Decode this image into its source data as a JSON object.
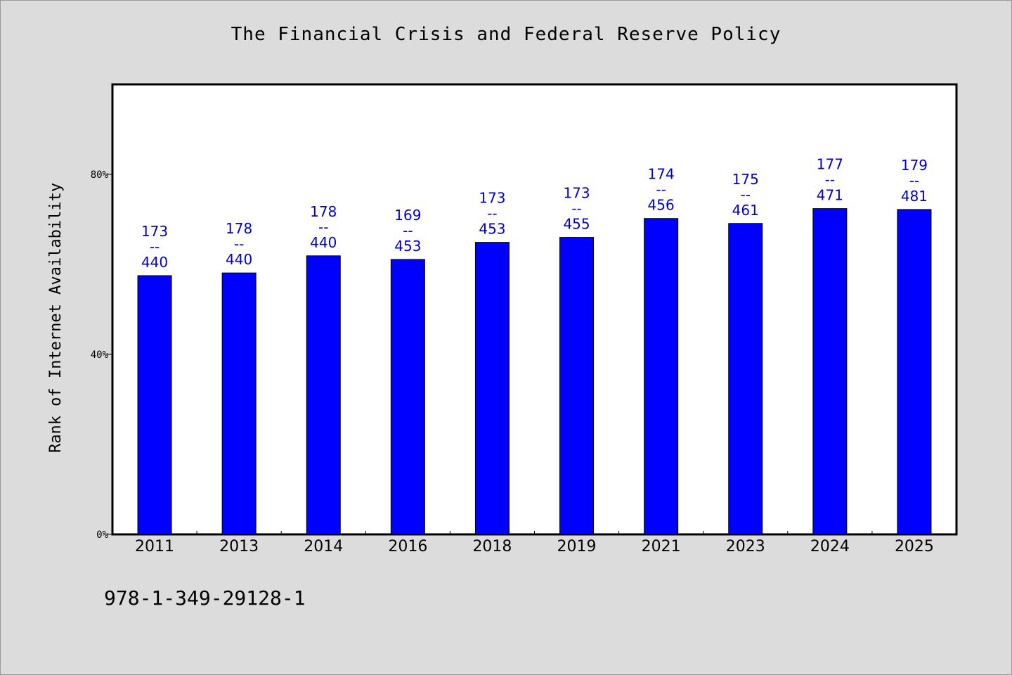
{
  "chart_data": {
    "type": "bar",
    "title": "The Financial Crisis and Federal Reserve Policy",
    "ylabel": "Rank of Internet Availability",
    "xlabel": "",
    "ylim": [
      0,
      100
    ],
    "yticks": [
      0,
      40,
      80
    ],
    "ytick_labels": [
      "0%",
      "40%",
      "80%"
    ],
    "grid": false,
    "bar_color": "#0000ff",
    "label_color": "#0000cc",
    "categories": [
      "2011",
      "2013",
      "2014",
      "2016",
      "2018",
      "2019",
      "2021",
      "2023",
      "2024",
      "2025"
    ],
    "values": [
      57.5,
      58.1,
      61.9,
      61.1,
      64.9,
      66.0,
      70.2,
      69.1,
      72.4,
      72.2
    ],
    "labels": [
      [
        "173",
        "--",
        "440"
      ],
      [
        "178",
        "--",
        "440"
      ],
      [
        "178",
        "--",
        "440"
      ],
      [
        "169",
        "--",
        "453"
      ],
      [
        "173",
        "--",
        "453"
      ],
      [
        "173",
        "--",
        "455"
      ],
      [
        "174",
        "--",
        "456"
      ],
      [
        "175",
        "--",
        "461"
      ],
      [
        "177",
        "--",
        "471"
      ],
      [
        "179",
        "--",
        "481"
      ]
    ]
  },
  "footer": {
    "code": "978-1-349-29128-1"
  }
}
